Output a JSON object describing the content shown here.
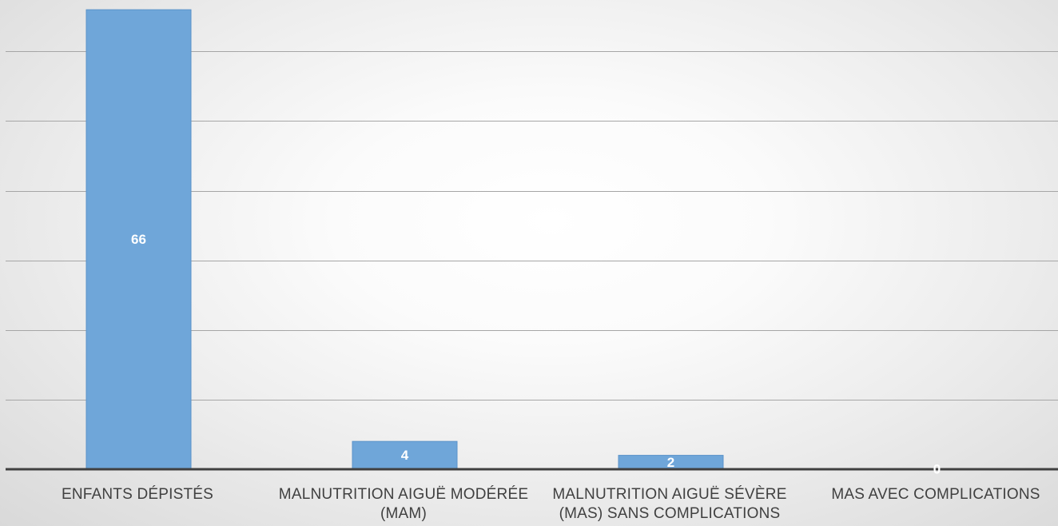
{
  "chart_data": {
    "type": "bar",
    "categories": [
      "ENFANTS DÉPISTÉS",
      "MALNUTRITION AIGUË MODÉRÉE (MAM)",
      "MALNUTRITION AIGUË SÉVÈRE (MAS) SANS COMPLICATIONS",
      "MAS AVEC COMPLICATIONS"
    ],
    "values": [
      66,
      4,
      2,
      0
    ],
    "data_labels": [
      "66",
      "4",
      "2",
      "0"
    ],
    "title": "",
    "xlabel": "",
    "ylabel": "",
    "ylim": [
      0,
      70
    ],
    "grid_step": 10,
    "grid": true,
    "legend": "none",
    "colors": {
      "bar": "#6fa6d9",
      "bar_edge": "#5b93c9",
      "data_label": "#ffffff",
      "gridline": "#a6a6a6",
      "axis": "#404040",
      "category_text": "#404040"
    }
  }
}
